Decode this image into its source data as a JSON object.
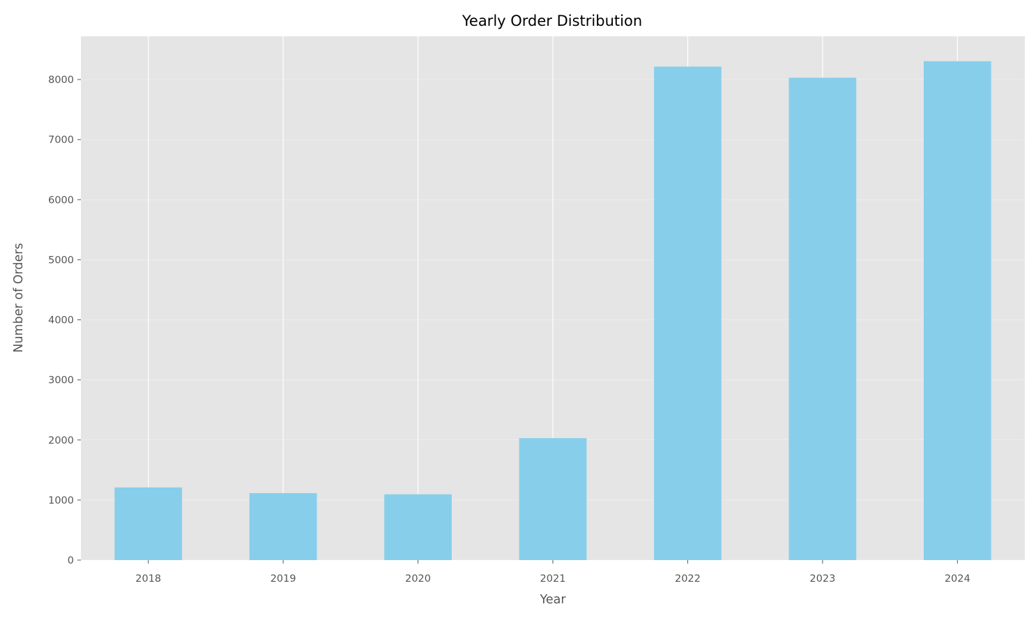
{
  "chart_data": {
    "type": "bar",
    "title": "Yearly Order Distribution",
    "xlabel": "Year",
    "ylabel": "Number of Orders",
    "categories": [
      "2018",
      "2019",
      "2020",
      "2021",
      "2022",
      "2023",
      "2024"
    ],
    "values": [
      1210,
      1115,
      1095,
      2030,
      8215,
      8030,
      8305
    ],
    "ylim": [
      0,
      8720
    ],
    "yticks": [
      0,
      1000,
      2000,
      3000,
      4000,
      5000,
      6000,
      7000,
      8000
    ],
    "grid": true,
    "style": {
      "bar_color": "#87CEEB",
      "plot_background": "#E5E5E5",
      "grid_color": "#FFFFFF",
      "page_background": "#FFFFFF"
    }
  }
}
